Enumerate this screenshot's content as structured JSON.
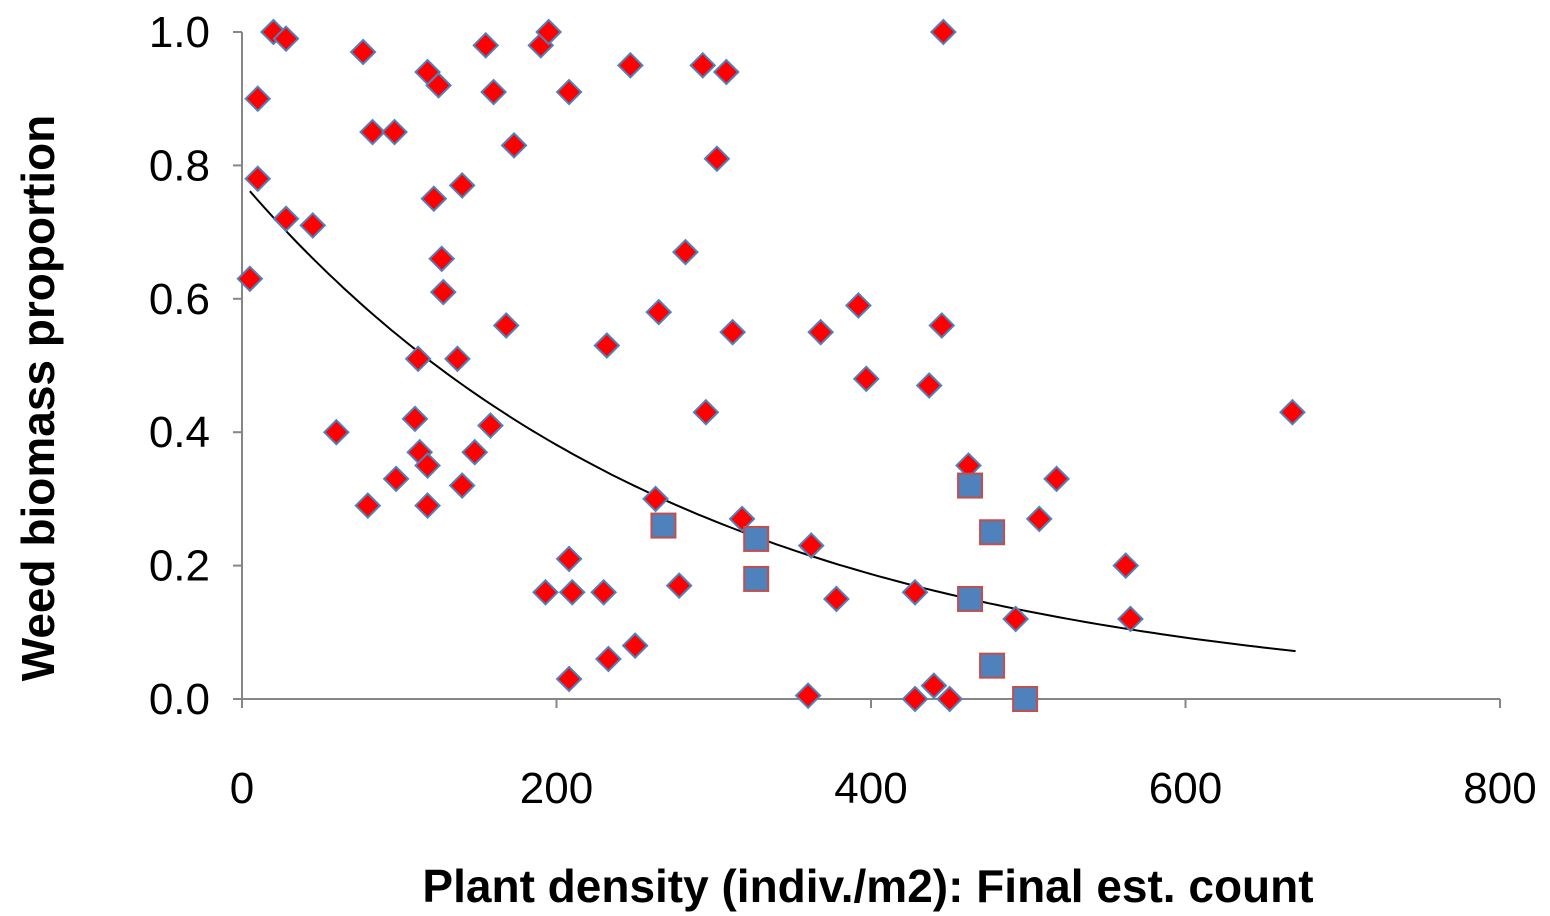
{
  "chart_data": {
    "type": "scatter",
    "title": "",
    "xlabel": "Plant density (indiv./m2): Final est. count",
    "ylabel": "Weed biomass proportion",
    "xlim": [
      0,
      800
    ],
    "ylim": [
      0,
      1
    ],
    "xticks": [
      0,
      200,
      400,
      600,
      800
    ],
    "xtick_labels": [
      "0",
      "200",
      "400",
      "600",
      "800"
    ],
    "yticks": [
      0,
      0.2,
      0.4,
      0.6,
      0.8,
      1.0
    ],
    "ytick_labels": [
      "0.0",
      "0.2",
      "0.4",
      "0.6",
      "0.8",
      "1.0"
    ],
    "grid": false,
    "legend": "none",
    "series": [
      {
        "marker": "diamond",
        "color": "#ff0000",
        "edge_color": "#4f81bd",
        "points": [
          [
            5,
            0.63
          ],
          [
            10,
            0.9
          ],
          [
            10,
            0.78
          ],
          [
            20,
            1.0
          ],
          [
            28,
            0.99
          ],
          [
            28,
            0.72
          ],
          [
            45,
            0.71
          ],
          [
            60,
            0.4
          ],
          [
            77,
            0.97
          ],
          [
            80,
            0.29
          ],
          [
            83,
            0.85
          ],
          [
            97,
            0.85
          ],
          [
            98,
            0.33
          ],
          [
            110,
            0.42
          ],
          [
            112,
            0.51
          ],
          [
            113,
            0.37
          ],
          [
            118,
            0.94
          ],
          [
            118,
            0.35
          ],
          [
            118,
            0.29
          ],
          [
            122,
            0.75
          ],
          [
            125,
            0.92
          ],
          [
            127,
            0.66
          ],
          [
            128,
            0.61
          ],
          [
            137,
            0.51
          ],
          [
            140,
            0.77
          ],
          [
            140,
            0.32
          ],
          [
            148,
            0.37
          ],
          [
            155,
            0.98
          ],
          [
            158,
            0.41
          ],
          [
            160,
            0.91
          ],
          [
            168,
            0.56
          ],
          [
            173,
            0.83
          ],
          [
            190,
            0.98
          ],
          [
            193,
            0.16
          ],
          [
            195,
            1.0
          ],
          [
            208,
            0.91
          ],
          [
            208,
            0.21
          ],
          [
            208,
            0.03
          ],
          [
            210,
            0.16
          ],
          [
            230,
            0.16
          ],
          [
            232,
            0.53
          ],
          [
            233,
            0.06
          ],
          [
            247,
            0.95
          ],
          [
            250,
            0.08
          ],
          [
            263,
            0.3
          ],
          [
            265,
            0.58
          ],
          [
            278,
            0.17
          ],
          [
            282,
            0.67
          ],
          [
            293,
            0.95
          ],
          [
            295,
            0.43
          ],
          [
            302,
            0.81
          ],
          [
            308,
            0.94
          ],
          [
            312,
            0.55
          ],
          [
            318,
            0.27
          ],
          [
            360,
            0.005
          ],
          [
            362,
            0.23
          ],
          [
            368,
            0.55
          ],
          [
            378,
            0.15
          ],
          [
            392,
            0.59
          ],
          [
            397,
            0.48
          ],
          [
            428,
            0.16
          ],
          [
            428,
            0.0
          ],
          [
            437,
            0.47
          ],
          [
            440,
            0.02
          ],
          [
            445,
            0.56
          ],
          [
            446,
            1.0
          ],
          [
            450,
            0.0
          ],
          [
            462,
            0.35
          ],
          [
            492,
            0.12
          ],
          [
            507,
            0.27
          ],
          [
            518,
            0.33
          ],
          [
            562,
            0.2
          ],
          [
            565,
            0.12
          ],
          [
            668,
            0.43
          ]
        ]
      },
      {
        "marker": "square",
        "color": "#4f81bd",
        "edge_color": "#c0504d",
        "points": [
          [
            268,
            0.26
          ],
          [
            327,
            0.24
          ],
          [
            327,
            0.18
          ],
          [
            463,
            0.32
          ],
          [
            463,
            0.15
          ],
          [
            477,
            0.25
          ],
          [
            477,
            0.05
          ],
          [
            498,
            0.0
          ]
        ]
      },
      {
        "type": "line",
        "color": "#000000",
        "curve": "exponential",
        "x_range": [
          5,
          670
        ],
        "y_at_x0": 0.775,
        "decay_rate": 0.00355
      }
    ]
  }
}
